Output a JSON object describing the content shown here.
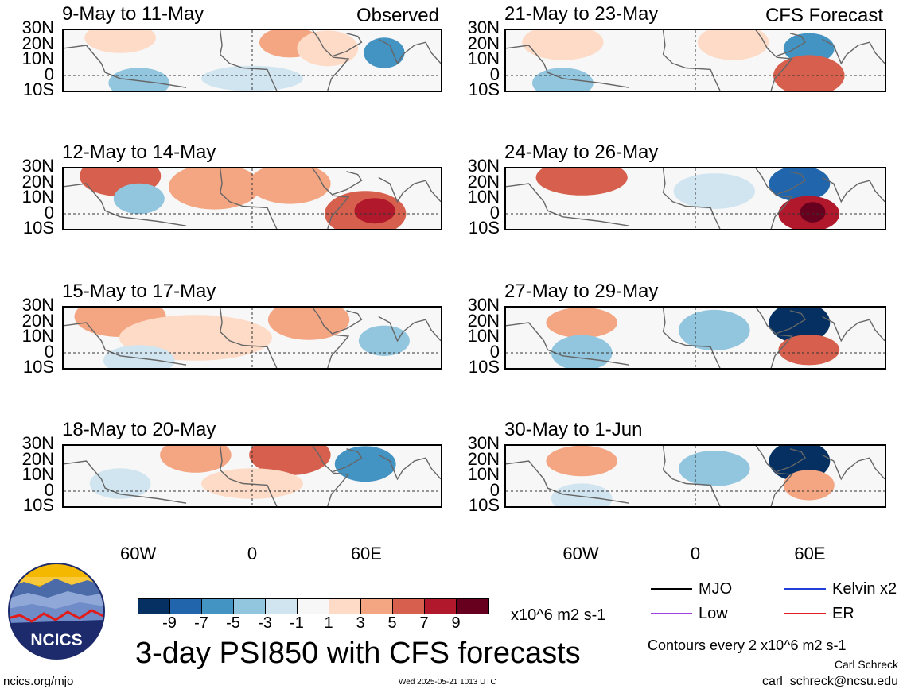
{
  "panels_left": [
    {
      "title": "9-May to 11-May",
      "tag": "Observed"
    },
    {
      "title": "12-May to 14-May",
      "tag": ""
    },
    {
      "title": "15-May to 17-May",
      "tag": ""
    },
    {
      "title": "18-May to 20-May",
      "tag": ""
    }
  ],
  "panels_right": [
    {
      "title": "21-May to 23-May",
      "tag": "CFS Forecast"
    },
    {
      "title": "24-May to 26-May",
      "tag": ""
    },
    {
      "title": "27-May to 29-May",
      "tag": ""
    },
    {
      "title": "30-May to 1-Jun",
      "tag": ""
    }
  ],
  "lat_labels": [
    "30N",
    "20N",
    "10N",
    "0",
    "10S"
  ],
  "lon_labels": [
    "60W",
    "0",
    "60E"
  ],
  "colorbar": {
    "colors": [
      "#053061",
      "#2166ac",
      "#4393c3",
      "#92c5de",
      "#d1e5f0",
      "#f7f7f7",
      "#fddbc7",
      "#f4a582",
      "#d6604d",
      "#b2182b",
      "#67001f"
    ],
    "ticks": [
      "-9",
      "-7",
      "-5",
      "-3",
      "-1",
      "1",
      "3",
      "5",
      "7",
      "9"
    ],
    "unit": "x10^6 m2 s-1"
  },
  "legend": {
    "items": [
      {
        "label": "MJO",
        "color": "#000000"
      },
      {
        "label": "Kelvin x2",
        "color": "#1f3fd6"
      },
      {
        "label": "Low",
        "color": "#a040e0"
      },
      {
        "label": "ER",
        "color": "#e02020"
      }
    ],
    "contours_note": "Contours every 2 x10^6 m2 s-1"
  },
  "logo_text": "NCICS",
  "main_title": "3-day PSI850 with CFS forecasts",
  "author": "Carl Schreck",
  "email": "carl_schreck@ncsu.edu",
  "site": "ncics.org/mjo",
  "timestamp": "Wed 2025-05-21 1013 UTC"
}
